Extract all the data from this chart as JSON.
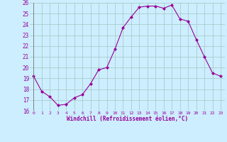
{
  "x": [
    0,
    1,
    2,
    3,
    4,
    5,
    6,
    7,
    8,
    9,
    10,
    11,
    12,
    13,
    14,
    15,
    16,
    17,
    18,
    19,
    20,
    21,
    22,
    23
  ],
  "y": [
    19.2,
    17.8,
    17.3,
    16.5,
    16.6,
    17.2,
    17.5,
    18.5,
    19.8,
    20.0,
    21.7,
    23.7,
    24.7,
    25.6,
    25.7,
    25.7,
    25.5,
    25.8,
    24.5,
    24.3,
    22.6,
    21.0,
    19.5,
    19.2
  ],
  "line_color": "#990099",
  "marker": "D",
  "marker_size": 2.0,
  "bg_color": "#cceeff",
  "grid_color": "#aacccc",
  "xlabel": "Windchill (Refroidissement éolien,°C)",
  "xlabel_color": "#990099",
  "tick_color": "#990099",
  "ylim": [
    16,
    26
  ],
  "xlim": [
    -0.5,
    23.5
  ],
  "yticks": [
    16,
    17,
    18,
    19,
    20,
    21,
    22,
    23,
    24,
    25,
    26
  ],
  "xticks": [
    0,
    1,
    2,
    3,
    4,
    5,
    6,
    7,
    8,
    9,
    10,
    11,
    12,
    13,
    14,
    15,
    16,
    17,
    18,
    19,
    20,
    21,
    22,
    23
  ]
}
